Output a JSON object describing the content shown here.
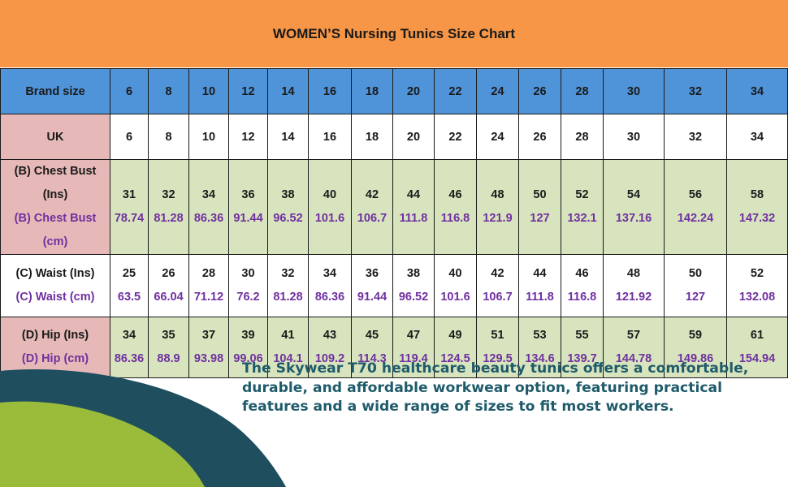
{
  "banner": {
    "title": "WOMEN’S Nursing Tunics Size Chart"
  },
  "table": {
    "brand_label": "Brand size",
    "uk_label": "UK",
    "sizes": [
      "6",
      "8",
      "10",
      "12",
      "14",
      "16",
      "18",
      "20",
      "22",
      "24",
      "26",
      "28",
      "30",
      "32",
      "34"
    ],
    "uk": [
      "6",
      "8",
      "10",
      "12",
      "14",
      "16",
      "18",
      "20",
      "22",
      "24",
      "26",
      "28",
      "30",
      "32",
      "34"
    ],
    "chest": {
      "label_ins": "(B) Chest Bust (Ins)",
      "label_cm": "(B) Chest Bust (cm)",
      "ins": [
        "31",
        "32",
        "34",
        "36",
        "38",
        "40",
        "42",
        "44",
        "46",
        "48",
        "50",
        "52",
        "54",
        "56",
        "58"
      ],
      "cm": [
        "78.74",
        "81.28",
        "86.36",
        "91.44",
        "96.52",
        "101.6",
        "106.7",
        "111.8",
        "116.8",
        "121.9",
        "127",
        "132.1",
        "137.16",
        "142.24",
        "147.32"
      ]
    },
    "waist": {
      "label_ins": "(C) Waist (Ins)",
      "label_cm": "(C) Waist (cm)",
      "ins": [
        "25",
        "26",
        "28",
        "30",
        "32",
        "34",
        "36",
        "38",
        "40",
        "42",
        "44",
        "46",
        "48",
        "50",
        "52"
      ],
      "cm": [
        "63.5",
        "66.04",
        "71.12",
        "76.2",
        "81.28",
        "86.36",
        "91.44",
        "96.52",
        "101.6",
        "106.7",
        "111.8",
        "116.8",
        "121.92",
        "127",
        "132.08"
      ]
    },
    "hip": {
      "label_ins": "(D) Hip (Ins)",
      "label_cm": "(D) Hip (cm)",
      "ins": [
        "34",
        "35",
        "37",
        "39",
        "41",
        "43",
        "45",
        "47",
        "49",
        "51",
        "53",
        "55",
        "57",
        "59",
        "61"
      ],
      "cm": [
        "86.36",
        "88.9",
        "93.98",
        "99.06",
        "104.1",
        "109.2",
        "114.3",
        "119.4",
        "124.5",
        "129.5",
        "134.6",
        "139.7",
        "144.78",
        "149.86",
        "154.94"
      ]
    }
  },
  "promo": {
    "text": "The Skywear T70 healthcare beauty tunics offers a comfortable, durable, and affordable workwear option, featuring practical features and a wide range of sizes to fit most workers."
  },
  "colors": {
    "banner": "#F79646",
    "header_row": "#4F93D8",
    "row_label_pink": "#E6B9B8",
    "green_row": "#D7E4BD",
    "cm_text": "#7030A0",
    "promo_text": "#1F5B6A",
    "arc_dark": "#1F4E5F",
    "arc_green": "#9BBB3B"
  }
}
